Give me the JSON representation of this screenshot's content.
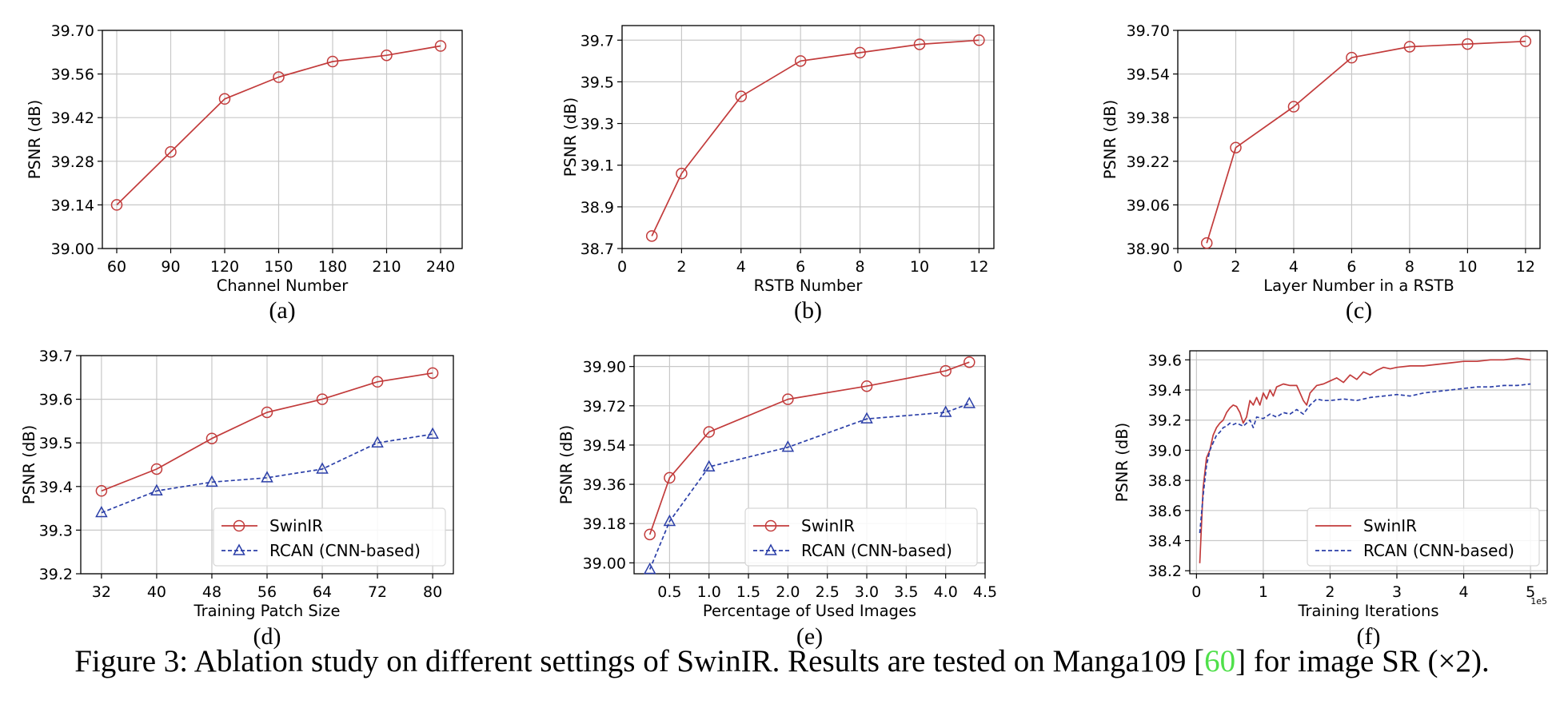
{
  "chart_data": [
    {
      "type": "line",
      "panel_label": "(a)",
      "xlabel": "Channel Number",
      "ylabel": "PSNR (dB)",
      "xlim": [
        52,
        252
      ],
      "ylim": [
        39.0,
        39.7
      ],
      "xticks": [
        60,
        90,
        120,
        150,
        180,
        210,
        240
      ],
      "xtick_labels": [
        "60",
        "90",
        "120",
        "150",
        "180",
        "210",
        "240"
      ],
      "yticks": [
        39.0,
        39.14,
        39.28,
        39.42,
        39.56,
        39.7
      ],
      "ytick_labels": [
        "39.00",
        "39.14",
        "39.28",
        "39.42",
        "39.56",
        "39.70"
      ],
      "grid": true,
      "series": [
        {
          "marker": "circle",
          "dashed": false,
          "color": "#c23b3b",
          "x": [
            60,
            90,
            120,
            150,
            180,
            210,
            240
          ],
          "y": [
            39.14,
            39.31,
            39.48,
            39.55,
            39.6,
            39.62,
            39.65
          ]
        }
      ]
    },
    {
      "type": "line",
      "panel_label": "(b)",
      "xlabel": "RSTB Number",
      "ylabel": "PSNR (dB)",
      "xlim": [
        0,
        12.5
      ],
      "ylim": [
        38.7,
        39.77
      ],
      "xticks": [
        0,
        2,
        4,
        6,
        8,
        10,
        12
      ],
      "xtick_labels": [
        "0",
        "2",
        "4",
        "6",
        "8",
        "10",
        "12"
      ],
      "yticks": [
        38.7,
        38.9,
        39.1,
        39.3,
        39.5,
        39.7
      ],
      "ytick_labels": [
        "38.7",
        "38.9",
        "39.1",
        "39.3",
        "39.5",
        "39.7"
      ],
      "grid": true,
      "series": [
        {
          "marker": "circle",
          "dashed": false,
          "color": "#c23b3b",
          "x": [
            1,
            2,
            4,
            6,
            8,
            10,
            12
          ],
          "y": [
            38.76,
            39.06,
            39.43,
            39.6,
            39.64,
            39.68,
            39.7
          ]
        }
      ]
    },
    {
      "type": "line",
      "panel_label": "(c)",
      "xlabel": "Layer Number in a RSTB",
      "ylabel": "PSNR (dB)",
      "xlim": [
        0,
        12.5
      ],
      "ylim": [
        38.9,
        39.7
      ],
      "xticks": [
        0,
        2,
        4,
        6,
        8,
        10,
        12
      ],
      "xtick_labels": [
        "0",
        "2",
        "4",
        "6",
        "8",
        "10",
        "12"
      ],
      "yticks": [
        38.9,
        39.06,
        39.22,
        39.38,
        39.54,
        39.7
      ],
      "ytick_labels": [
        "38.90",
        "39.06",
        "39.22",
        "39.38",
        "39.54",
        "39.70"
      ],
      "grid": true,
      "series": [
        {
          "marker": "circle",
          "dashed": false,
          "color": "#c23b3b",
          "x": [
            1,
            2,
            4,
            6,
            8,
            10,
            12
          ],
          "y": [
            38.92,
            39.27,
            39.42,
            39.6,
            39.64,
            39.65,
            39.66
          ]
        }
      ]
    },
    {
      "type": "line",
      "panel_label": "(d)",
      "xlabel": "Training Patch Size",
      "ylabel": "PSNR (dB)",
      "xlim": [
        29,
        83
      ],
      "ylim": [
        39.2,
        39.7
      ],
      "xticks": [
        32,
        40,
        48,
        56,
        64,
        72,
        80
      ],
      "xtick_labels": [
        "32",
        "40",
        "48",
        "56",
        "64",
        "72",
        "80"
      ],
      "yticks": [
        39.2,
        39.3,
        39.4,
        39.5,
        39.6,
        39.7
      ],
      "ytick_labels": [
        "39.2",
        "39.3",
        "39.4",
        "39.5",
        "39.6",
        "39.7"
      ],
      "grid": true,
      "legend": "lower-right",
      "series": [
        {
          "name": "SwinIR",
          "marker": "circle",
          "dashed": false,
          "color": "#c23b3b",
          "x": [
            32,
            40,
            48,
            56,
            64,
            72,
            80
          ],
          "y": [
            39.39,
            39.44,
            39.51,
            39.57,
            39.6,
            39.64,
            39.66
          ]
        },
        {
          "name": "RCAN (CNN-based)",
          "marker": "triangle",
          "dashed": true,
          "color": "#2b3fa8",
          "x": [
            32,
            40,
            48,
            56,
            64,
            72,
            80
          ],
          "y": [
            39.34,
            39.39,
            39.41,
            39.42,
            39.44,
            39.5,
            39.52
          ]
        }
      ]
    },
    {
      "type": "line",
      "panel_label": "(e)",
      "xlabel": "Percentage of Used Images",
      "ylabel": "PSNR (dB)",
      "xlim": [
        0.05,
        4.5
      ],
      "ylim": [
        38.95,
        39.95
      ],
      "xticks": [
        0.5,
        1.0,
        1.5,
        2.0,
        2.5,
        3.0,
        3.5,
        4.0,
        4.5
      ],
      "xtick_labels": [
        "0.5",
        "1.0",
        "1.5",
        "2.0",
        "2.5",
        "3.0",
        "3.5",
        "4.0",
        "4.5"
      ],
      "yticks": [
        39.0,
        39.18,
        39.36,
        39.54,
        39.72,
        39.9
      ],
      "ytick_labels": [
        "39.00",
        "39.18",
        "39.36",
        "39.54",
        "39.72",
        "39.90"
      ],
      "grid": true,
      "legend": "lower-right",
      "series": [
        {
          "name": "SwinIR",
          "marker": "circle",
          "dashed": false,
          "color": "#c23b3b",
          "x": [
            0.25,
            0.5,
            1.0,
            2.0,
            3.0,
            4.0,
            4.3
          ],
          "y": [
            39.13,
            39.39,
            39.6,
            39.75,
            39.81,
            39.88,
            39.92
          ]
        },
        {
          "name": "RCAN (CNN-based)",
          "marker": "triangle",
          "dashed": true,
          "color": "#2b3fa8",
          "x": [
            0.25,
            0.5,
            1.0,
            2.0,
            3.0,
            4.0,
            4.3
          ],
          "y": [
            38.97,
            39.19,
            39.44,
            39.53,
            39.66,
            39.69,
            39.73
          ]
        }
      ]
    },
    {
      "type": "line",
      "panel_label": "(f)",
      "xlabel": "Training Iterations",
      "ylabel": "PSNR (dB)",
      "x_scale_label": "1e5",
      "xlim": [
        -0.1,
        5.25
      ],
      "ylim": [
        38.18,
        39.66
      ],
      "xticks": [
        0,
        1,
        2,
        3,
        4,
        5
      ],
      "xtick_labels": [
        "0",
        "1",
        "2",
        "3",
        "4",
        "5"
      ],
      "yticks": [
        38.2,
        38.4,
        38.6,
        38.8,
        39.0,
        39.2,
        39.4,
        39.6
      ],
      "ytick_labels": [
        "38.2",
        "38.4",
        "38.6",
        "38.8",
        "39.0",
        "39.2",
        "39.4",
        "39.6"
      ],
      "grid": true,
      "legend": "lower-right",
      "series": [
        {
          "name": "SwinIR",
          "marker": "none",
          "dashed": false,
          "color": "#c23b3b",
          "x": [
            0.05,
            0.1,
            0.15,
            0.2,
            0.25,
            0.3,
            0.35,
            0.4,
            0.45,
            0.5,
            0.55,
            0.6,
            0.65,
            0.7,
            0.75,
            0.8,
            0.85,
            0.9,
            0.95,
            1.0,
            1.05,
            1.1,
            1.15,
            1.2,
            1.3,
            1.4,
            1.5,
            1.6,
            1.65,
            1.7,
            1.8,
            1.9,
            2.0,
            2.1,
            2.2,
            2.3,
            2.4,
            2.5,
            2.6,
            2.7,
            2.8,
            2.9,
            3.0,
            3.2,
            3.4,
            3.6,
            3.8,
            4.0,
            4.2,
            4.4,
            4.6,
            4.8,
            5.0
          ],
          "y": [
            38.25,
            38.75,
            38.95,
            39.0,
            39.1,
            39.15,
            39.18,
            39.2,
            39.25,
            39.28,
            39.3,
            39.29,
            39.25,
            39.18,
            39.22,
            39.33,
            39.3,
            39.35,
            39.3,
            39.38,
            39.34,
            39.4,
            39.36,
            39.42,
            39.44,
            39.43,
            39.43,
            39.33,
            39.3,
            39.38,
            39.43,
            39.44,
            39.46,
            39.48,
            39.45,
            39.5,
            39.47,
            39.52,
            39.5,
            39.53,
            39.55,
            39.54,
            39.55,
            39.56,
            39.56,
            39.57,
            39.58,
            39.59,
            39.59,
            39.6,
            39.6,
            39.61,
            39.6
          ]
        },
        {
          "name": "RCAN (CNN-based)",
          "marker": "none",
          "dashed": true,
          "color": "#2b3fa8",
          "x": [
            0.05,
            0.1,
            0.15,
            0.2,
            0.25,
            0.3,
            0.35,
            0.4,
            0.45,
            0.5,
            0.55,
            0.6,
            0.7,
            0.8,
            0.85,
            0.9,
            1.0,
            1.1,
            1.2,
            1.3,
            1.4,
            1.5,
            1.6,
            1.7,
            1.8,
            1.9,
            2.0,
            2.2,
            2.4,
            2.6,
            2.8,
            3.0,
            3.2,
            3.4,
            3.6,
            3.8,
            4.0,
            4.2,
            4.4,
            4.6,
            4.8,
            5.0
          ],
          "y": [
            38.45,
            38.7,
            38.9,
            39.0,
            39.05,
            39.1,
            39.12,
            39.15,
            39.16,
            39.18,
            39.17,
            39.18,
            39.16,
            39.2,
            39.15,
            39.22,
            39.21,
            39.24,
            39.22,
            39.25,
            39.24,
            39.27,
            39.24,
            39.3,
            39.34,
            39.33,
            39.33,
            39.34,
            39.33,
            39.35,
            39.36,
            39.37,
            39.36,
            39.38,
            39.39,
            39.4,
            39.41,
            39.42,
            39.42,
            39.43,
            39.43,
            39.44
          ]
        }
      ]
    }
  ],
  "caption": {
    "prefix": "Figure 3: Ablation study on different settings of SwinIR. Results are tested on Manga109 [",
    "ref": "60",
    "suffix": "] for image SR (×2)."
  }
}
